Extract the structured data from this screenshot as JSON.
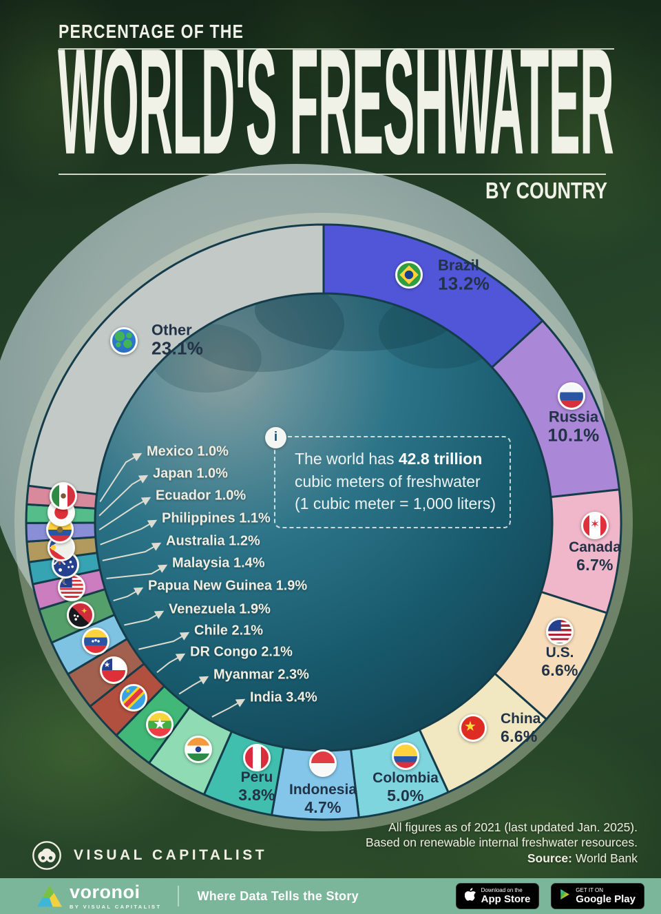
{
  "header": {
    "kicker": "PERCENTAGE OF THE",
    "title": "WORLD'S FRESHWATER",
    "subtitle": "BY COUNTRY"
  },
  "callout": {
    "info_glyph": "i",
    "line1_prefix": "The world has ",
    "line1_bold": "42.8 trillion",
    "line2": "cubic meters of freshwater",
    "line3": "(1 cubic meter = 1,000 liters)"
  },
  "chart_data": {
    "type": "pie",
    "title": "Percentage of the World's Freshwater by Country",
    "unit": "%",
    "donut": true,
    "inner_radius_ratio": 0.77,
    "start_angle_deg": 0,
    "direction": "clockwise",
    "legend_position": "on-chart",
    "center_annotation": "The world has 42.8 trillion cubic meters of freshwater (1 cubic meter = 1,000 liters)",
    "series": [
      {
        "label": "Brazil",
        "value": 13.2,
        "color": "#5156d8",
        "icon": "flag-brazil"
      },
      {
        "label": "Russia",
        "value": 10.1,
        "color": "#ab87d8",
        "icon": "flag-russia"
      },
      {
        "label": "Canada",
        "value": 6.7,
        "color": "#f0b6c9",
        "icon": "flag-canada"
      },
      {
        "label": "U.S.",
        "value": 6.6,
        "color": "#f6dcb9",
        "icon": "flag-us"
      },
      {
        "label": "China",
        "value": 6.6,
        "color": "#f1e8c2",
        "icon": "flag-china"
      },
      {
        "label": "Colombia",
        "value": 5.0,
        "color": "#7fd5dd",
        "icon": "flag-colombia"
      },
      {
        "label": "Indonesia",
        "value": 4.7,
        "color": "#84c6e9",
        "icon": "flag-indonesia"
      },
      {
        "label": "Peru",
        "value": 3.8,
        "color": "#41bfae",
        "icon": "flag-peru"
      },
      {
        "label": "India",
        "value": 3.4,
        "color": "#8fdcb4",
        "icon": "flag-india"
      },
      {
        "label": "Myanmar",
        "value": 2.3,
        "color": "#41b877",
        "icon": "flag-myanmar"
      },
      {
        "label": "DR Congo",
        "value": 2.1,
        "color": "#b1503f",
        "icon": "flag-dr-congo"
      },
      {
        "label": "Chile",
        "value": 2.1,
        "color": "#a2604e",
        "icon": "flag-chile"
      },
      {
        "label": "Venezuela",
        "value": 1.9,
        "color": "#7fc3e3",
        "icon": "flag-venezuela"
      },
      {
        "label": "Papua New Guinea",
        "value": 1.9,
        "color": "#55a06a",
        "icon": "flag-papua-new-guinea"
      },
      {
        "label": "Malaysia",
        "value": 1.4,
        "color": "#cb7dc0",
        "icon": "flag-malaysia"
      },
      {
        "label": "Australia",
        "value": 1.2,
        "color": "#36a4b2",
        "icon": "flag-australia"
      },
      {
        "label": "Philippines",
        "value": 1.1,
        "color": "#b29a5e",
        "icon": "flag-philippines"
      },
      {
        "label": "Ecuador",
        "value": 1.0,
        "color": "#8a8ed6",
        "icon": "flag-ecuador"
      },
      {
        "label": "Japan",
        "value": 1.0,
        "color": "#55bd89",
        "icon": "flag-japan"
      },
      {
        "label": "Mexico",
        "value": 1.0,
        "color": "#d88a9c",
        "icon": "flag-mexico"
      },
      {
        "label": "Other",
        "value": 23.1,
        "color": "#c2c9c6",
        "icon": "earth-icon"
      }
    ]
  },
  "footnote": {
    "line1": "All figures as of 2021 (last updated Jan. 2025).",
    "line2": "Based on renewable internal freshwater resources.",
    "source_label": "Source:",
    "source": "World Bank"
  },
  "branding": {
    "logo_icon": "visual-capitalist-logo-icon",
    "logo_text": "VISUAL CAPITALIST"
  },
  "footer_bar": {
    "brand": "voronoi",
    "brand_sub": "BY VISUAL CAPITALIST",
    "tagline": "Where Data Tells the Story",
    "app_store": {
      "icon": "apple-icon",
      "line1": "Download on the",
      "line2": "App Store"
    },
    "google_play": {
      "icon": "play-icon",
      "line1": "GET IT ON",
      "line2": "Google Play"
    }
  }
}
